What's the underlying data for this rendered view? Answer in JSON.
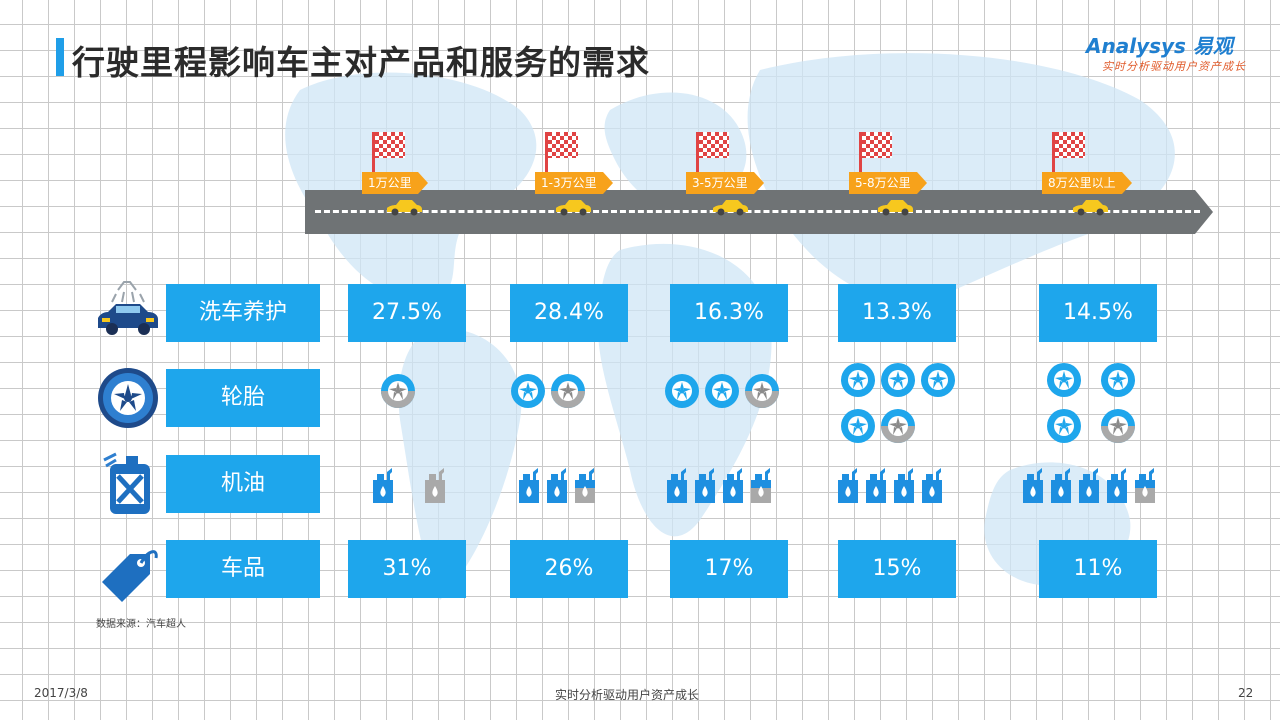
{
  "slide": {
    "title": "行驶里程影响车主对产品和服务的需求",
    "logo_main": "Analysys 易观",
    "logo_sub": "实时分析驱动用户资产成长"
  },
  "stages": [
    {
      "label": "1万公里"
    },
    {
      "label": "1-3万公里"
    },
    {
      "label": "3-5万公里"
    },
    {
      "label": "5-8万公里"
    },
    {
      "label": "8万公里以上"
    }
  ],
  "categories": {
    "wash": {
      "label": "洗车养护",
      "icon": "car-wash-icon"
    },
    "tire": {
      "label": "轮胎",
      "icon": "tire-icon"
    },
    "oil": {
      "label": "机油",
      "icon": "oil-can-icon"
    },
    "goods": {
      "label": "车品",
      "icon": "price-tag-icon"
    }
  },
  "wash_values": [
    "27.5%",
    "28.4%",
    "16.3%",
    "13.3%",
    "14.5%"
  ],
  "goods_values": [
    "31%",
    "26%",
    "17%",
    "15%",
    "11%"
  ],
  "tire_levels": [
    0.5,
    1.5,
    2.5,
    4.5,
    3.5
  ],
  "oil_levels": [
    1.0,
    2.5,
    3.5,
    4.0,
    4.5
  ],
  "source": "数据来源：汽车超人",
  "footer": {
    "date": "2017/3/8",
    "center": "实时分析驱动用户资产成长",
    "page": "22"
  },
  "colors": {
    "accent": "#1ea6ec",
    "tag": "#f7a21b",
    "flag": "#e04444",
    "road": "#6f7375",
    "car": "#f7c81e",
    "muted": "#a9a9a9"
  }
}
